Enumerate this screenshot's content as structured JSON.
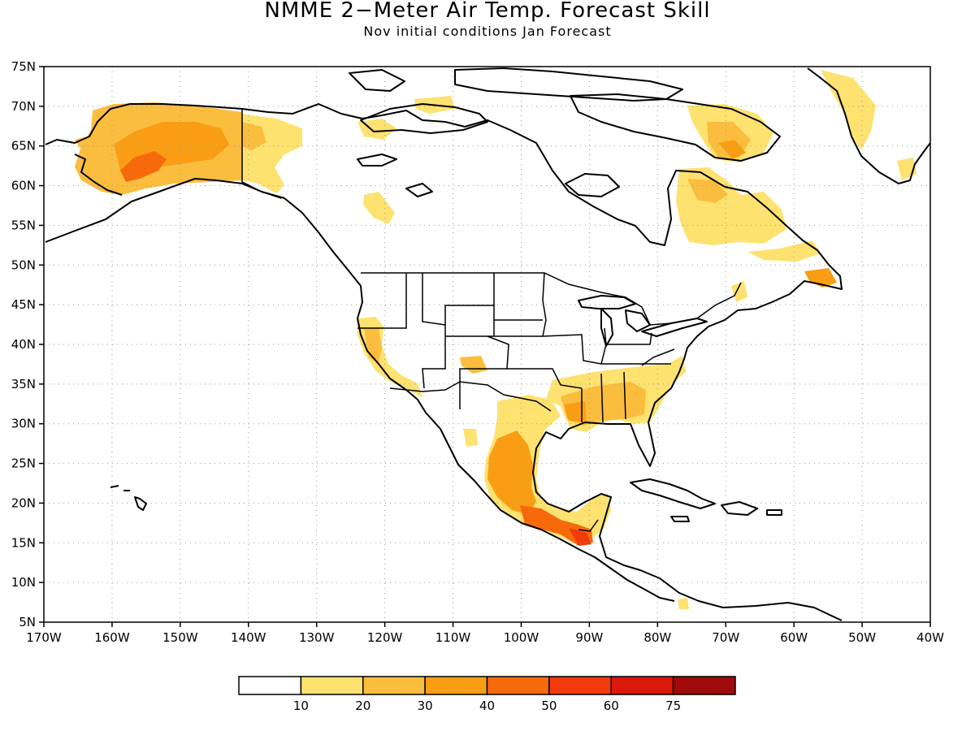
{
  "title": "NMME 2−Meter Air Temp. Forecast Skill",
  "subtitle": "Nov initial conditions  Jan Forecast",
  "map": {
    "lon_range": [
      -170,
      -40
    ],
    "lat_range": [
      5,
      75
    ],
    "lon_labels": [
      "170W",
      "160W",
      "150W",
      "140W",
      "130W",
      "120W",
      "110W",
      "100W",
      "90W",
      "80W",
      "70W",
      "60W",
      "50W",
      "40W"
    ],
    "lat_labels": [
      "5N",
      "10N",
      "15N",
      "20N",
      "25N",
      "30N",
      "35N",
      "40N",
      "45N",
      "50N",
      "55N",
      "60N",
      "65N",
      "70N",
      "75N"
    ],
    "grid": true
  },
  "legend": {
    "colors": [
      "#ffffff",
      "#fde26f",
      "#fbbd3e",
      "#f99e14",
      "#f66a0c",
      "#f23a0b",
      "#da180b",
      "#a00a0a"
    ],
    "labels": [
      "10",
      "20",
      "30",
      "40",
      "50",
      "60",
      "75"
    ]
  },
  "regions": [
    {
      "name": "alaska",
      "colors": [
        "#fbbd3e",
        "#f99e14",
        "#f66a0c"
      ]
    },
    {
      "name": "yukon",
      "colors": [
        "#fde26f",
        "#fbbd3e"
      ]
    },
    {
      "name": "california",
      "colors": [
        "#fbbd3e",
        "#f99e14"
      ]
    },
    {
      "name": "southeast-us",
      "colors": [
        "#fde26f",
        "#fbbd3e",
        "#f99e14"
      ]
    },
    {
      "name": "mexico",
      "colors": [
        "#fbbd3e",
        "#f99e14"
      ]
    },
    {
      "name": "southern-mexico",
      "colors": [
        "#f66a0c",
        "#f23a0b"
      ]
    },
    {
      "name": "quebec",
      "colors": [
        "#fde26f",
        "#fbbd3e"
      ]
    },
    {
      "name": "baffin",
      "colors": [
        "#fde26f",
        "#fbbd3e",
        "#f99e14"
      ]
    },
    {
      "name": "greenland",
      "colors": [
        "#fde26f"
      ]
    }
  ]
}
